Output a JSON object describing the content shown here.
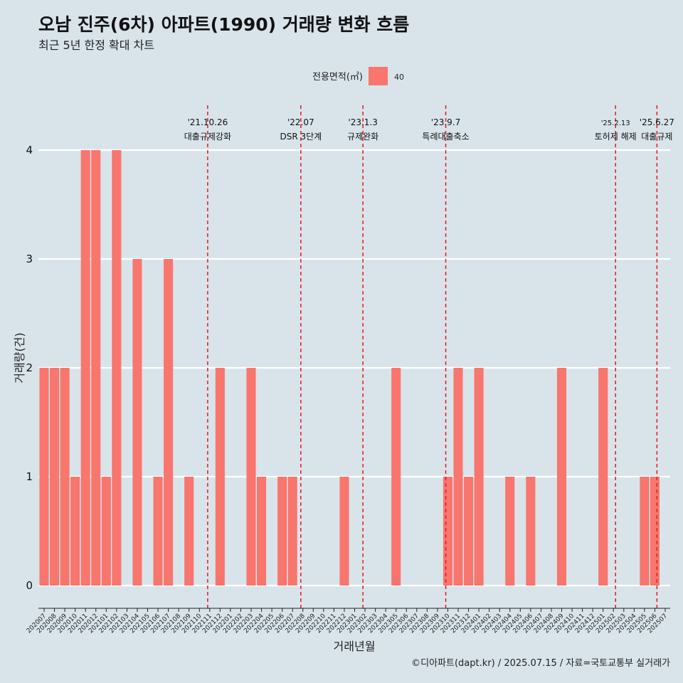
{
  "title": "오남 진주(6차) 아파트(1990) 거래량 변화 흐름",
  "subtitle": "최근 5년 한정 확대 차트",
  "caption": "©디아파트(dapt.kr) / 2025.07.15 / 자료=국토교통부 실거래가",
  "colors": {
    "background": "#d8e4ea",
    "bar": "#f8766d",
    "event_line": "#e31a1c",
    "grid": "#ffffff"
  },
  "chart_data": {
    "type": "bar",
    "xlabel": "거래년월",
    "ylabel": "거래량(건)",
    "ylim": [
      0,
      4
    ],
    "yticks": [
      "0",
      "1",
      "2",
      "3",
      "4"
    ],
    "grid": true,
    "legend": {
      "title": "전용면적(㎡)",
      "placement": "top-center",
      "entries": [
        "40"
      ]
    },
    "categories": [
      "202007",
      "202008",
      "202009",
      "202010",
      "202011",
      "202012",
      "202101",
      "202102",
      "202103",
      "202104",
      "202105",
      "202106",
      "202107",
      "202108",
      "202109",
      "202110",
      "202111",
      "202112",
      "202201",
      "202202",
      "202203",
      "202204",
      "202205",
      "202206",
      "202207",
      "202208",
      "202209",
      "202210",
      "202211",
      "202212",
      "202301",
      "202302",
      "202303",
      "202304",
      "202305",
      "202306",
      "202307",
      "202308",
      "202309",
      "202310",
      "202311",
      "202312",
      "202401",
      "202402",
      "202403",
      "202404",
      "202405",
      "202406",
      "202407",
      "202408",
      "202409",
      "202410",
      "202411",
      "202412",
      "202501",
      "202502",
      "202503",
      "202504",
      "202505",
      "202506",
      "202507"
    ],
    "series": [
      {
        "name": "40",
        "values": [
          2,
          2,
          2,
          1,
          4,
          4,
          1,
          4,
          0,
          3,
          0,
          1,
          3,
          0,
          1,
          0,
          0,
          2,
          0,
          0,
          2,
          1,
          0,
          1,
          1,
          0,
          0,
          0,
          0,
          1,
          0,
          0,
          0,
          0,
          2,
          0,
          0,
          0,
          0,
          1,
          2,
          1,
          2,
          0,
          0,
          1,
          0,
          1,
          0,
          0,
          2,
          0,
          0,
          0,
          2,
          0,
          0,
          0,
          1,
          1,
          0
        ]
      }
    ],
    "events": [
      {
        "date": "'21.10.26",
        "label": "대출규제강화",
        "index": 15.8
      },
      {
        "date": "'22.07",
        "label": "DSR 3단계",
        "index": 24.8
      },
      {
        "date": "'23.1.3",
        "label": "규제완화",
        "index": 30.8
      },
      {
        "date": "'23.9.7",
        "label": "특례대출축소",
        "index": 38.8
      },
      {
        "date": "'25.2.13",
        "label": "토허제 해제",
        "index": 55.2
      },
      {
        "date": "'25.6.27",
        "label": "대출규제",
        "index": 59.2
      }
    ]
  }
}
